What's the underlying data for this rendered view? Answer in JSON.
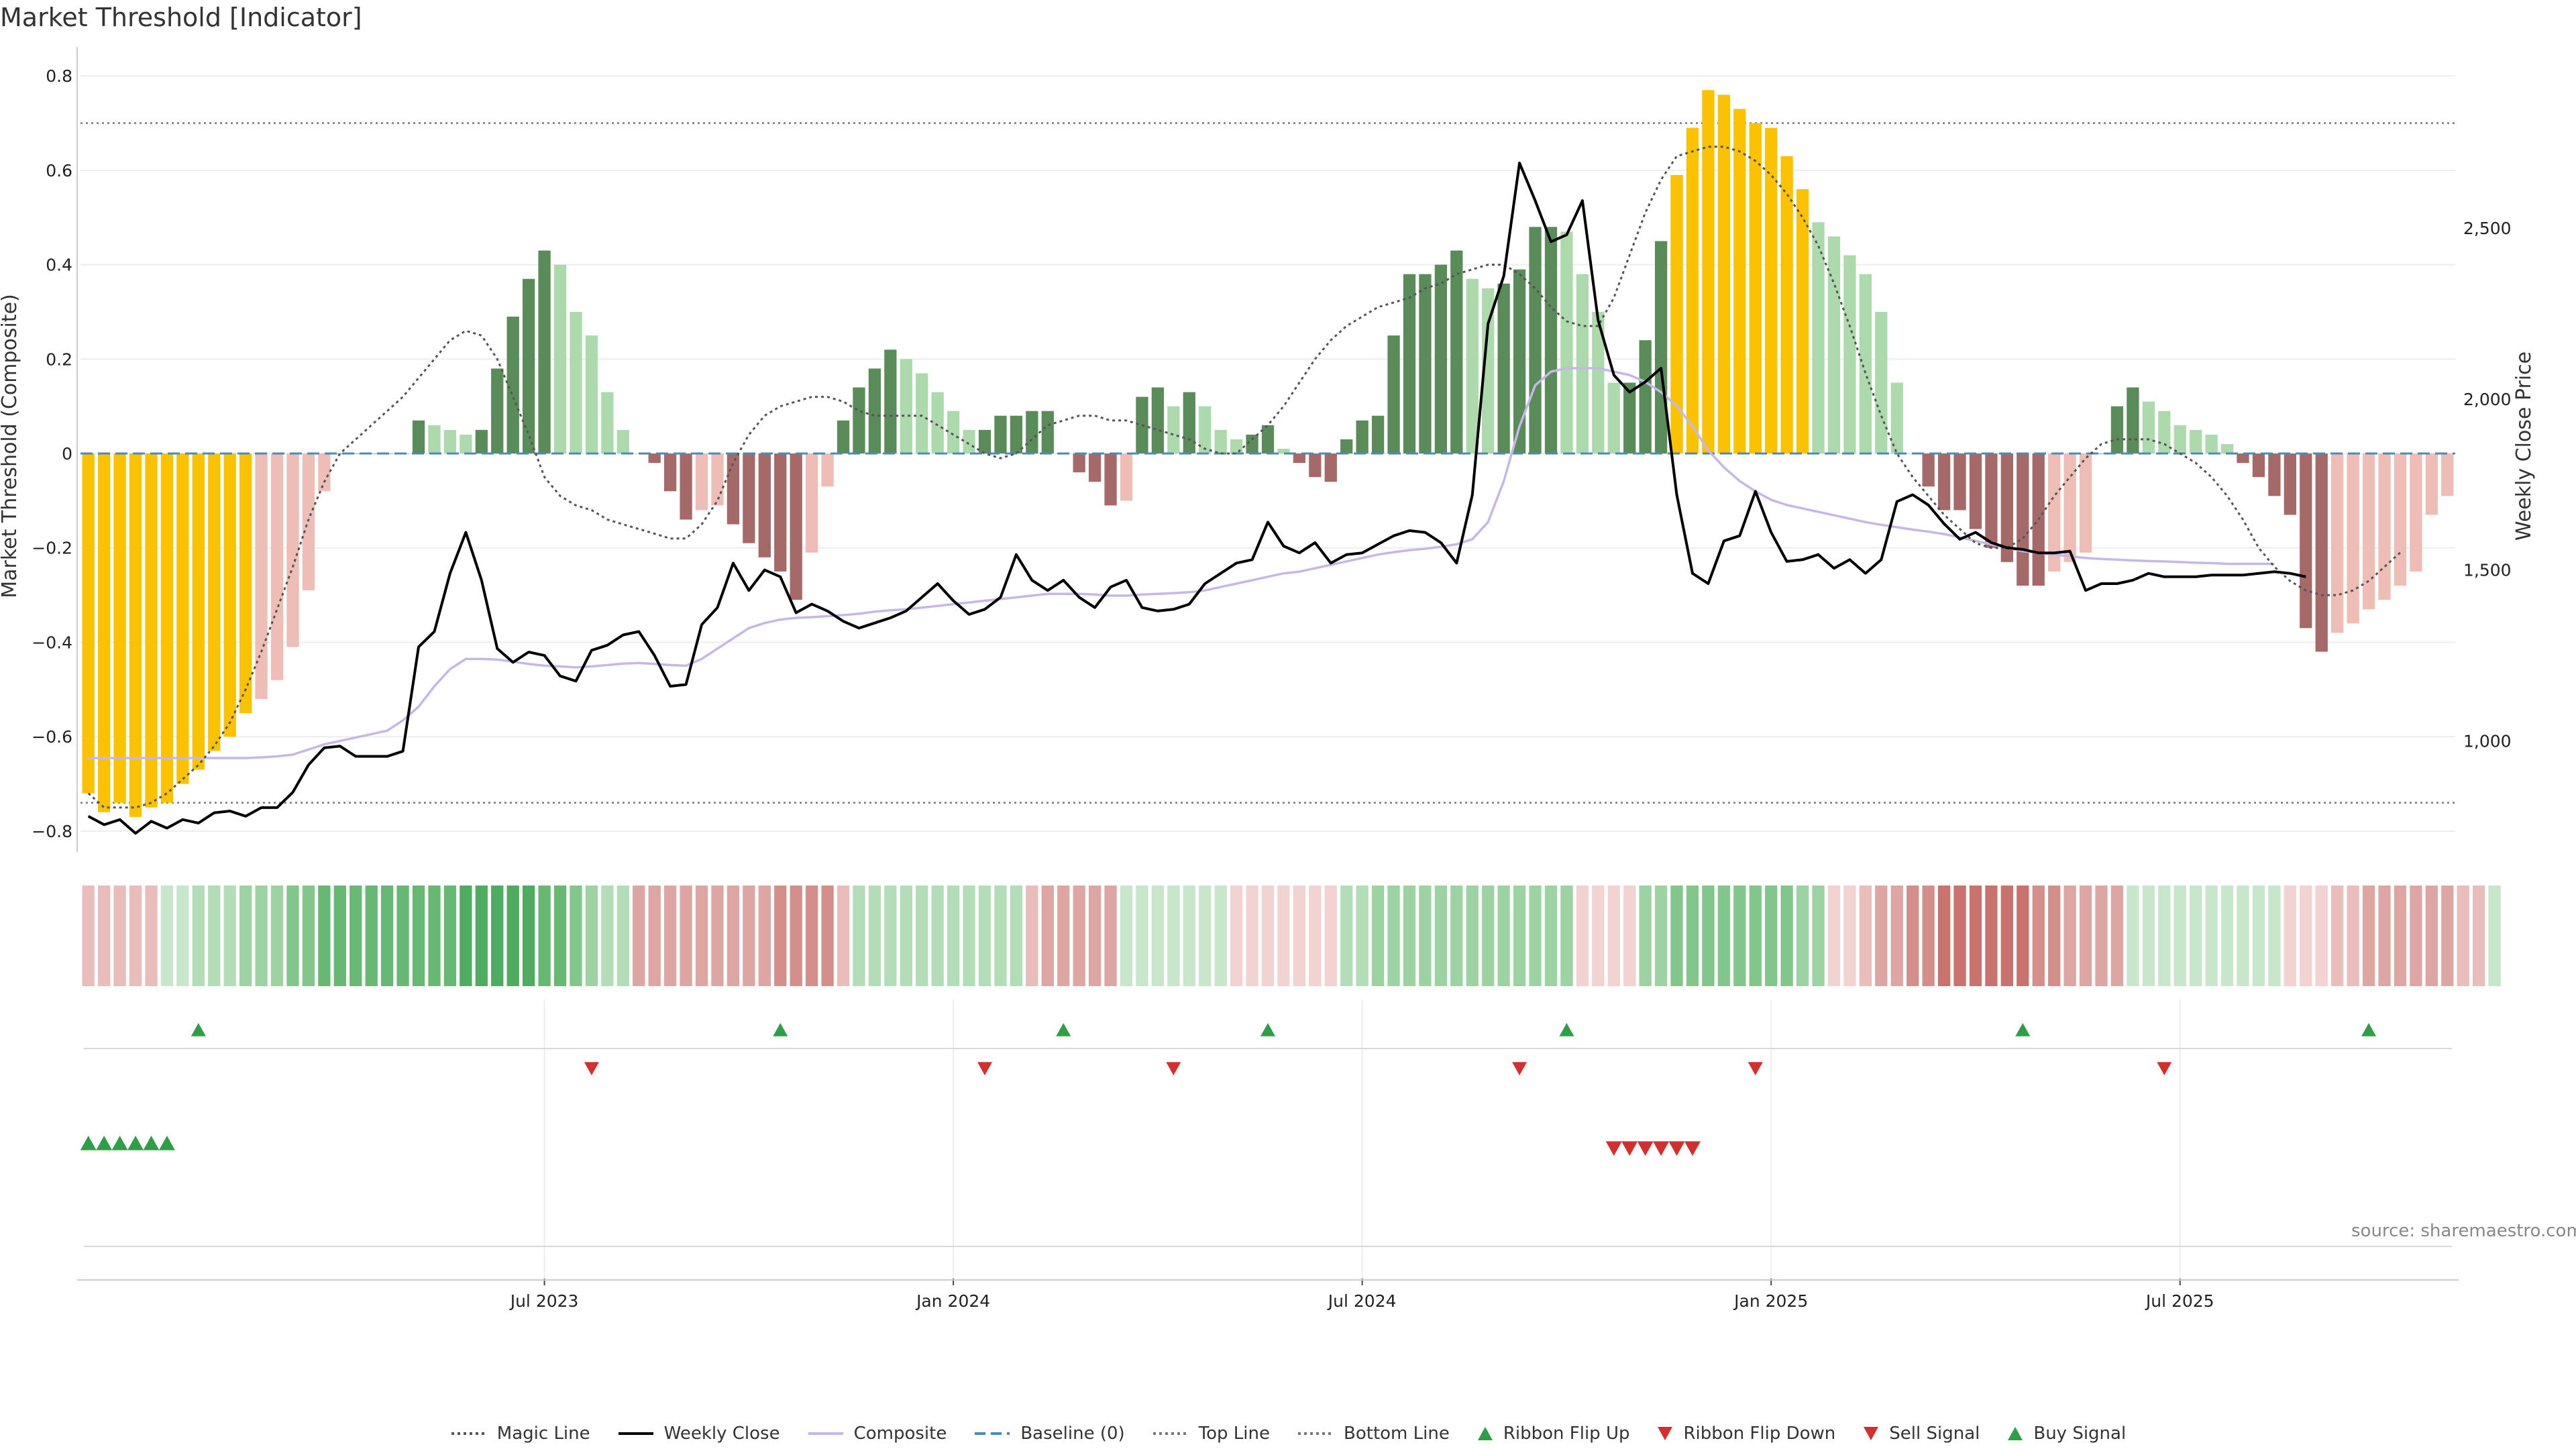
{
  "title": "Market Threshold [Indicator]",
  "source": "source: sharemaestro.com",
  "colors": {
    "extreme": "#FBC201",
    "pos_strong": "#5A8C5A",
    "pos_weak": "#ADDAAD",
    "neg_strong": "#A56A68",
    "neg_weak": "#EEBDB6",
    "weekly_close": "#000000",
    "composite": "#C6B8E6",
    "magic": "#555555",
    "baseline": "#4A8BB8",
    "threshold": "#777777",
    "flip_up": "#2E9E47",
    "flip_down": "#D32F2F"
  },
  "chart_data": {
    "type": "bar",
    "title": "Market Threshold [Indicator]",
    "ylabel": "Market Threshold (Composite)",
    "y2label": "Weekly Close Price",
    "ylim": [
      -0.83,
      0.84
    ],
    "y2lim": [
      695,
      3000
    ],
    "y_ticks": [
      -0.8,
      -0.6,
      -0.4,
      -0.2,
      0,
      0.2,
      0.4,
      0.6,
      0.8
    ],
    "y_tick_labels": [
      "−0.8",
      "−0.6",
      "−0.4",
      "−0.2",
      "0",
      "0.2",
      "0.4",
      "0.6",
      "0.8"
    ],
    "y2_ticks": [
      1000,
      1500,
      2000,
      2500
    ],
    "y2_tick_labels": [
      "1,000",
      "1,500",
      "2,000",
      "2,500"
    ],
    "x_ticks": [
      {
        "week": 29,
        "label": "Jul 2023"
      },
      {
        "week": 55,
        "label": "Jan 2024"
      },
      {
        "week": 81,
        "label": "Jul 2024"
      },
      {
        "week": 107,
        "label": "Jan 2025"
      },
      {
        "week": 133,
        "label": "Jul 2025"
      }
    ],
    "first_week": "2023-01-01",
    "top_line": 0.7,
    "bottom_line": -0.74,
    "legend_position": "bottom",
    "grid": true,
    "composite": [
      -0.72,
      -0.76,
      -0.74,
      -0.77,
      -0.75,
      -0.74,
      -0.7,
      -0.67,
      -0.63,
      -0.6,
      -0.55,
      -0.52,
      -0.48,
      -0.41,
      -0.29,
      -0.08,
      0,
      0,
      0,
      0,
      0,
      0.07,
      0.06,
      0.05,
      0.04,
      0.05,
      0.18,
      0.29,
      0.37,
      0.43,
      0.4,
      0.3,
      0.25,
      0.13,
      0.05,
      0,
      -0.02,
      -0.08,
      -0.14,
      -0.12,
      -0.11,
      -0.15,
      -0.19,
      -0.22,
      -0.25,
      -0.31,
      -0.21,
      -0.07,
      0.07,
      0.14,
      0.18,
      0.22,
      0.2,
      0.17,
      0.13,
      0.09,
      0.05,
      0.05,
      0.08,
      0.08,
      0.09,
      0.09,
      0,
      -0.04,
      -0.06,
      -0.11,
      -0.1,
      0.12,
      0.14,
      0.1,
      0.13,
      0.1,
      0.05,
      0.03,
      0.04,
      0.06,
      0.01,
      -0.02,
      -0.05,
      -0.06,
      0.03,
      0.07,
      0.08,
      0.25,
      0.38,
      0.38,
      0.4,
      0.43,
      0.37,
      0.35,
      0.36,
      0.39,
      0.48,
      0.48,
      0.47,
      0.38,
      0.3,
      0.15,
      0.15,
      0.24,
      0.45,
      0.59,
      0.69,
      0.77,
      0.76,
      0.73,
      0.7,
      0.69,
      0.63,
      0.56,
      0.49,
      0.46,
      0.42,
      0.38,
      0.3,
      0.15,
      0,
      -0.07,
      -0.12,
      -0.12,
      -0.16,
      -0.2,
      -0.23,
      -0.28,
      -0.28,
      -0.25,
      -0.23,
      -0.21,
      0,
      0.1,
      0.14,
      0.11,
      0.09,
      0.06,
      0.05,
      0.04,
      0.02,
      -0.02,
      -0.05,
      -0.09,
      -0.13,
      -0.37,
      -0.42,
      -0.38,
      -0.36,
      -0.33,
      -0.31,
      -0.28,
      -0.25,
      -0.13,
      -0.09
    ],
    "magic_line": [
      -0.72,
      -0.75,
      -0.75,
      -0.75,
      -0.74,
      -0.72,
      -0.69,
      -0.66,
      -0.62,
      -0.57,
      -0.5,
      -0.42,
      -0.33,
      -0.24,
      -0.14,
      -0.06,
      0.0,
      0.03,
      0.06,
      0.09,
      0.12,
      0.16,
      0.2,
      0.24,
      0.26,
      0.25,
      0.2,
      0.12,
      0.04,
      -0.05,
      -0.09,
      -0.11,
      -0.12,
      -0.14,
      -0.15,
      -0.16,
      -0.17,
      -0.18,
      -0.18,
      -0.15,
      -0.1,
      -0.02,
      0.04,
      0.08,
      0.1,
      0.11,
      0.12,
      0.12,
      0.11,
      0.09,
      0.08,
      0.08,
      0.08,
      0.08,
      0.06,
      0.04,
      0.02,
      0.0,
      -0.01,
      0.0,
      0.03,
      0.06,
      0.07,
      0.08,
      0.08,
      0.07,
      0.07,
      0.06,
      0.05,
      0.04,
      0.03,
      0.01,
      0.0,
      0.0,
      0.03,
      0.06,
      0.1,
      0.15,
      0.2,
      0.24,
      0.27,
      0.29,
      0.31,
      0.32,
      0.33,
      0.35,
      0.36,
      0.38,
      0.39,
      0.4,
      0.4,
      0.38,
      0.35,
      0.31,
      0.28,
      0.27,
      0.27,
      0.33,
      0.42,
      0.51,
      0.58,
      0.63,
      0.64,
      0.65,
      0.65,
      0.64,
      0.62,
      0.59,
      0.55,
      0.5,
      0.44,
      0.36,
      0.27,
      0.17,
      0.08,
      0.0,
      -0.05,
      -0.09,
      -0.13,
      -0.16,
      -0.19,
      -0.2,
      -0.2,
      -0.18,
      -0.14,
      -0.09,
      -0.05,
      -0.01,
      0.02,
      0.03,
      0.03,
      0.03,
      0.02,
      0.0,
      -0.02,
      -0.05,
      -0.09,
      -0.14,
      -0.2,
      -0.24,
      -0.27,
      -0.29,
      -0.3,
      -0.3,
      -0.29,
      -0.27,
      -0.24,
      -0.21
    ],
    "weekly_close": [
      780,
      755,
      770,
      730,
      765,
      745,
      770,
      760,
      790,
      795,
      780,
      805,
      805,
      850,
      930,
      980,
      985,
      955,
      955,
      955,
      970,
      1275,
      1320,
      1490,
      1610,
      1470,
      1270,
      1230,
      1260,
      1250,
      1190,
      1175,
      1265,
      1280,
      1310,
      1320,
      1250,
      1160,
      1165,
      1340,
      1390,
      1520,
      1440,
      1500,
      1480,
      1375,
      1400,
      1380,
      1350,
      1330,
      1345,
      1360,
      1380,
      1420,
      1460,
      1410,
      1370,
      1385,
      1420,
      1545,
      1470,
      1440,
      1470,
      1420,
      1390,
      1450,
      1470,
      1390,
      1380,
      1385,
      1400,
      1460,
      1490,
      1520,
      1530,
      1640,
      1570,
      1550,
      1580,
      1520,
      1545,
      1550,
      1575,
      1600,
      1615,
      1610,
      1580,
      1520,
      1720,
      2220,
      2360,
      2690,
      2580,
      2460,
      2480,
      2580,
      2230,
      2070,
      2020,
      2050,
      2090,
      1720,
      1490,
      1460,
      1585,
      1600,
      1730,
      1610,
      1525,
      1530,
      1545,
      1505,
      1530,
      1490,
      1530,
      1700,
      1720,
      1690,
      1635,
      1590,
      1610,
      1580,
      1565,
      1560,
      1550,
      1550,
      1555,
      1440,
      1460,
      1460,
      1470,
      1490,
      1480,
      1480,
      1480,
      1485,
      1485,
      1485,
      1490,
      1495,
      1490,
      1480
    ],
    "composite_line": [
      950,
      950,
      950,
      950,
      950,
      950,
      950,
      950,
      950,
      950,
      950,
      952,
      955,
      960,
      975,
      990,
      1000,
      1010,
      1020,
      1030,
      1060,
      1100,
      1160,
      1210,
      1240,
      1240,
      1238,
      1232,
      1225,
      1220,
      1218,
      1215,
      1218,
      1222,
      1226,
      1228,
      1225,
      1222,
      1220,
      1240,
      1270,
      1300,
      1330,
      1345,
      1355,
      1360,
      1362,
      1365,
      1368,
      1372,
      1378,
      1382,
      1385,
      1390,
      1395,
      1400,
      1405,
      1410,
      1415,
      1420,
      1425,
      1430,
      1430,
      1430,
      1428,
      1425,
      1425,
      1428,
      1430,
      1432,
      1435,
      1440,
      1450,
      1460,
      1470,
      1480,
      1490,
      1495,
      1505,
      1515,
      1525,
      1535,
      1545,
      1552,
      1558,
      1562,
      1568,
      1575,
      1590,
      1640,
      1760,
      1920,
      2040,
      2080,
      2090,
      2090,
      2090,
      2080,
      2070,
      2050,
      2020,
      1980,
      1920,
      1850,
      1800,
      1760,
      1730,
      1705,
      1690,
      1680,
      1670,
      1660,
      1650,
      1640,
      1632,
      1625,
      1618,
      1612,
      1605,
      1595,
      1585,
      1575,
      1565,
      1555,
      1550,
      1545,
      1540,
      1535,
      1532,
      1530,
      1528,
      1526,
      1525,
      1523,
      1521,
      1520,
      1518,
      1518,
      1518,
      1518
    ]
  },
  "ribbon": {
    "values": [
      -2,
      -2,
      -2,
      -2,
      -2,
      1,
      1,
      2,
      2,
      2,
      3,
      3,
      3,
      4,
      4,
      5,
      5,
      5,
      5,
      5,
      5,
      5,
      5,
      5,
      6,
      6,
      6,
      6,
      6,
      5,
      5,
      4,
      3,
      2,
      2,
      -3,
      -3,
      -3,
      -3,
      -3,
      -3,
      -3,
      -3,
      -3,
      -4,
      -4,
      -4,
      -4,
      -2,
      2,
      2,
      2,
      2,
      2,
      2,
      2,
      2,
      2,
      2,
      2,
      -2,
      -3,
      -3,
      -3,
      -3,
      -3,
      1,
      1,
      1,
      1,
      1,
      1,
      1,
      -1,
      -1,
      -1,
      -1,
      -1,
      -1,
      -1,
      2,
      2,
      3,
      3,
      3,
      3,
      3,
      3,
      3,
      3,
      3,
      3,
      3,
      3,
      3,
      -1,
      -1,
      -1,
      -1,
      3,
      3,
      4,
      4,
      4,
      4,
      4,
      4,
      4,
      4,
      3,
      3,
      -1,
      -1,
      -2,
      -3,
      -3,
      -4,
      -4,
      -5,
      -5,
      -5,
      -5,
      -5,
      -5,
      -4,
      -4,
      -3,
      -3,
      -3,
      -3,
      1,
      1,
      1,
      1,
      1,
      1,
      1,
      1,
      1,
      1,
      -1,
      -1,
      -1,
      -2,
      -2,
      -3,
      -3,
      -3,
      -3,
      -3,
      -3,
      -2,
      -2,
      1
    ]
  },
  "signals": {
    "ribbon_flip_up": [
      7,
      44,
      62,
      75,
      94,
      123,
      145
    ],
    "ribbon_flip_down": [
      32,
      57,
      69,
      91,
      106,
      132
    ],
    "buy_signal": [
      0,
      1,
      2,
      3,
      4,
      5
    ],
    "sell_signal": [
      97,
      98,
      99,
      100,
      101,
      102
    ]
  },
  "legend": [
    {
      "label": "Magic Line",
      "icon": "dotted-line"
    },
    {
      "label": "Weekly Close",
      "icon": "solid-line"
    },
    {
      "label": "Composite",
      "icon": "solid-line"
    },
    {
      "label": "Baseline (0)",
      "icon": "dashed-line"
    },
    {
      "label": "Top Line",
      "icon": "dotted-line"
    },
    {
      "label": "Bottom Line",
      "icon": "dotted-line"
    },
    {
      "label": "Ribbon Flip Up",
      "icon": "triangle-up"
    },
    {
      "label": "Ribbon Flip Down",
      "icon": "triangle-down"
    },
    {
      "label": "Sell Signal",
      "icon": "triangle-down"
    },
    {
      "label": "Buy Signal",
      "icon": "triangle-up"
    }
  ]
}
